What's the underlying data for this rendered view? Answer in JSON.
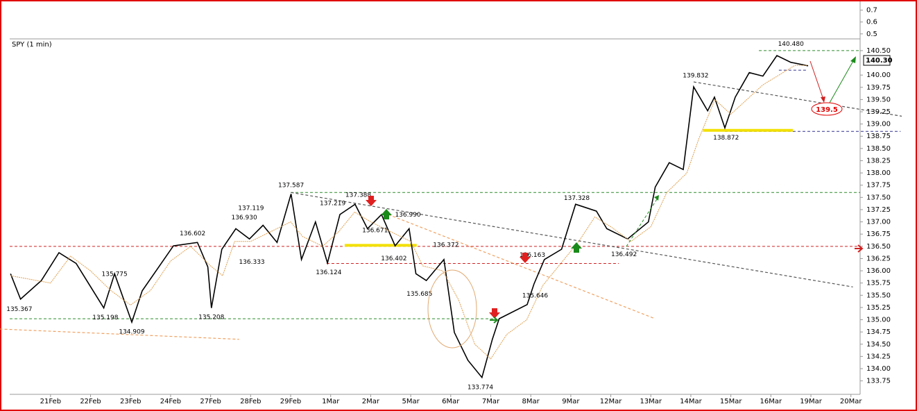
{
  "chart_data": {
    "type": "line",
    "title": "SPY (1 min)",
    "xlim": [
      -1.02,
      20.23
    ],
    "ylim": [
      133.475,
      140.74
    ],
    "xticks": [
      {
        "value": 0,
        "label": "21Feb"
      },
      {
        "value": 1,
        "label": "22Feb"
      },
      {
        "value": 2,
        "label": "23Feb"
      },
      {
        "value": 3,
        "label": "24Feb"
      },
      {
        "value": 4,
        "label": "27Feb"
      },
      {
        "value": 5,
        "label": "28Feb"
      },
      {
        "value": 6,
        "label": "29Feb"
      },
      {
        "value": 7,
        "label": "1Mar"
      },
      {
        "value": 8,
        "label": "2Mar"
      },
      {
        "value": 9,
        "label": "5Mar"
      },
      {
        "value": 10,
        "label": "6Mar"
      },
      {
        "value": 11,
        "label": "7Mar"
      },
      {
        "value": 12,
        "label": "8Mar"
      },
      {
        "value": 13,
        "label": "9Mar"
      },
      {
        "value": 14,
        "label": "12Mar"
      },
      {
        "value": 15,
        "label": "13Mar"
      },
      {
        "value": 16,
        "label": "14Mar"
      },
      {
        "value": 17,
        "label": "15Mar"
      },
      {
        "value": 18,
        "label": "16Mar"
      },
      {
        "value": 19,
        "label": "19Mar"
      },
      {
        "value": 20,
        "label": "20Mar"
      }
    ],
    "yticks": [
      133.75,
      {
        "value": 134,
        "label": "134.00"
      },
      134.25,
      {
        "value": 134.5,
        "label": "134.50"
      },
      134.75,
      {
        "value": 135,
        "label": "135.00"
      },
      135.25,
      {
        "value": 135.5,
        "label": "135.50"
      },
      135.75,
      {
        "value": 136,
        "label": "136.00"
      },
      136.25,
      {
        "value": 136.5,
        "label": "136.50"
      },
      136.75,
      {
        "value": 137,
        "label": "137.00"
      },
      137.25,
      {
        "value": 137.5,
        "label": "137.50"
      },
      137.75,
      {
        "value": 138,
        "label": "138.00"
      },
      138.25,
      {
        "value": 138.5,
        "label": "138.50"
      },
      138.75,
      {
        "value": 139,
        "label": "139.00"
      },
      139.25,
      {
        "value": 139.5,
        "label": "139.50"
      },
      139.75,
      {
        "value": 140,
        "label": "140.00"
      },
      {
        "value": 140.5,
        "label": "140.50"
      }
    ],
    "upper_panel": {
      "ylim": [
        0.458,
        0.785
      ],
      "yticks": [
        0.5,
        0.6,
        0.7
      ]
    },
    "series": [
      {
        "color": "#000000",
        "x": [
          -1.0,
          -0.75,
          -0.23,
          0.21,
          0.64,
          1.33,
          1.6,
          2.03,
          2.29,
          3.07,
          3.67,
          3.93,
          4.02,
          4.28,
          4.63,
          4.97,
          5.31,
          5.66,
          6.01,
          6.27,
          6.62,
          6.92,
          7.23,
          7.61,
          7.92,
          8.27,
          8.61,
          8.96,
          9.13,
          9.39,
          9.83,
          10.09,
          10.43,
          10.78,
          11.04,
          11.21,
          11.91,
          12.08,
          12.34,
          12.77,
          13.12,
          13.64,
          13.9,
          14.42,
          14.94,
          15.11,
          15.46,
          15.81,
          16.07,
          16.42,
          16.59,
          16.85,
          17.11,
          17.46,
          17.8,
          18.15,
          18.5,
          18.93
        ],
        "values": [
          135.94,
          135.42,
          135.8,
          136.37,
          136.15,
          135.24,
          135.94,
          134.95,
          135.59,
          136.51,
          136.58,
          136.08,
          135.24,
          136.44,
          136.86,
          136.65,
          136.93,
          136.58,
          137.57,
          136.23,
          137.0,
          136.16,
          137.15,
          137.36,
          136.86,
          137.15,
          136.51,
          136.86,
          135.94,
          135.8,
          136.23,
          134.74,
          134.17,
          133.82,
          134.6,
          135.02,
          135.31,
          135.73,
          136.23,
          136.44,
          137.36,
          137.22,
          136.86,
          136.65,
          137.0,
          137.71,
          138.21,
          138.07,
          139.76,
          139.27,
          139.55,
          138.92,
          139.55,
          140.05,
          139.98,
          140.4,
          140.26,
          140.19
        ]
      },
      {
        "color": "#e0a050",
        "x": [
          -1,
          0,
          0.5,
          1,
          1.5,
          2,
          2.5,
          3,
          3.5,
          4,
          4.3,
          4.6,
          5,
          5.5,
          6,
          6.3,
          6.8,
          7.2,
          7.6,
          8,
          8.5,
          9,
          9.3,
          9.8,
          10.2,
          10.6,
          11.0,
          11.4,
          11.9,
          12.3,
          12.8,
          13.2,
          13.6,
          14.0,
          14.5,
          15.0,
          15.4,
          15.9,
          16.2,
          16.6,
          17.0,
          17.4,
          17.8,
          18.2,
          18.6,
          18.9
        ],
        "values": [
          135.9,
          135.75,
          136.3,
          136.0,
          135.6,
          135.3,
          135.6,
          136.2,
          136.5,
          136.1,
          135.9,
          136.6,
          136.6,
          136.8,
          137.0,
          136.7,
          136.5,
          136.8,
          137.2,
          137.0,
          136.8,
          136.6,
          136.1,
          136.0,
          135.4,
          134.5,
          134.2,
          134.7,
          135.0,
          135.7,
          136.2,
          136.6,
          137.1,
          136.9,
          136.6,
          136.9,
          137.6,
          138.0,
          138.7,
          139.5,
          139.2,
          139.5,
          139.8,
          140.0,
          140.2,
          140.2
        ]
      }
    ],
    "pivots": [
      {
        "x": -0.78,
        "value": 135.367,
        "label": "135.367"
      },
      {
        "x": 1.6,
        "value": 135.775,
        "label": "135.775"
      },
      {
        "x": 1.37,
        "value": 135.198,
        "label": "135.198"
      },
      {
        "x": 2.03,
        "value": 134.909,
        "label": "134.909"
      },
      {
        "x": 4.02,
        "value": 135.208,
        "label": "135.208"
      },
      {
        "x": 3.55,
        "value": 136.602,
        "label": "136.602"
      },
      {
        "x": 4.84,
        "value": 136.93,
        "label": "136.930"
      },
      {
        "x": 5.01,
        "value": 137.119,
        "label": "137.119"
      },
      {
        "x": 5.03,
        "value": 136.333,
        "label": "136.333"
      },
      {
        "x": 6.01,
        "value": 137.587,
        "label": "137.587"
      },
      {
        "x": 7.05,
        "value": 137.219,
        "label": "137.219"
      },
      {
        "x": 7.69,
        "value": 137.388,
        "label": "137.388"
      },
      {
        "x": 6.95,
        "value": 136.124,
        "label": "136.124"
      },
      {
        "x": 8.11,
        "value": 136.671,
        "label": "136.671"
      },
      {
        "x": 8.58,
        "value": 136.402,
        "label": "136.402"
      },
      {
        "x": 8.93,
        "value": 136.99,
        "label": "136.990"
      },
      {
        "x": 9.88,
        "value": 136.372,
        "label": "136.372"
      },
      {
        "x": 9.22,
        "value": 135.685,
        "label": "135.685"
      },
      {
        "x": 10.74,
        "value": 133.774,
        "label": "133.774"
      },
      {
        "x": 12.04,
        "value": 136.163,
        "label": "136.163"
      },
      {
        "x": 12.11,
        "value": 135.646,
        "label": "135.646"
      },
      {
        "x": 13.15,
        "value": 137.328,
        "label": "137.328"
      },
      {
        "x": 14.33,
        "value": 136.492,
        "label": "136.492"
      },
      {
        "x": 16.12,
        "value": 139.832,
        "label": "139.832"
      },
      {
        "x": 16.88,
        "value": 138.872,
        "label": "138.872"
      },
      {
        "x": 18.5,
        "value": 140.48,
        "label": "140.480"
      }
    ],
    "levels": [
      {
        "value": 140.5,
        "x": [
          17.7,
          20.23
        ],
        "color": "#2a8a2a",
        "style": "dashed"
      },
      {
        "value": 137.6,
        "x": [
          6.0,
          20.23
        ],
        "color": "#2a8a2a",
        "style": "dashed"
      },
      {
        "value": 136.5,
        "x": [
          -1.02,
          20.23
        ],
        "color": "#d02020",
        "style": "dashed"
      },
      {
        "value": 136.15,
        "x": [
          6.9,
          14.2
        ],
        "color": "#d02020",
        "style": "dashed"
      },
      {
        "value": 135.02,
        "x": [
          -1.02,
          11.1
        ],
        "color": "#2a8a2a",
        "style": "dashed"
      },
      {
        "value": 138.85,
        "x": [
          16.85,
          21.24
        ],
        "color": "#303090",
        "style": "dashed"
      },
      {
        "value": 140.1,
        "x": [
          18.2,
          18.9
        ],
        "color": "#303090",
        "style": "dashed"
      },
      {
        "value": 136.52,
        "x": [
          7.35,
          9.15
        ],
        "color": "#f2e000",
        "style": "thick"
      },
      {
        "value": 138.87,
        "x": [
          16.3,
          18.55
        ],
        "color": "#f2e000",
        "style": "thick"
      }
    ],
    "trendlines": [
      {
        "x": [
          6.01,
          20.05
        ],
        "y": [
          137.6,
          135.67
        ],
        "color": "#555555"
      },
      {
        "x": [
          16.07,
          21.27
        ],
        "y": [
          139.86,
          139.16
        ],
        "color": "#555555"
      },
      {
        "x": [
          -1.27,
          4.71
        ],
        "y": [
          134.81,
          134.6
        ],
        "color": "#f0a060"
      },
      {
        "x": [
          8.44,
          15.11
        ],
        "y": [
          137.15,
          135.02
        ],
        "color": "#f0a060"
      }
    ],
    "last_price": {
      "value": 140.3,
      "label": "140.30"
    },
    "target_label": 139.5
  }
}
